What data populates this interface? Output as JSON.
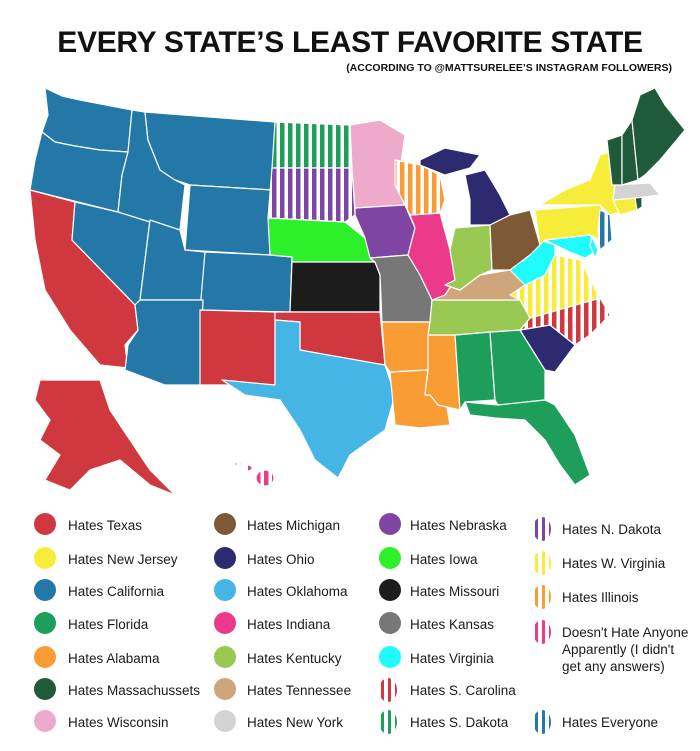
{
  "title": "EVERY STATE’S LEAST FAVORITE STATE",
  "subtitle": "(ACCORDING TO @MATTSURELEE’S INSTAGRAM FOLLOWERS)",
  "legend": [
    {
      "label": "Hates Texas",
      "color": "#d0383f",
      "striped": false
    },
    {
      "label": "Hates New Jersey",
      "color": "#f8ec3a",
      "striped": false
    },
    {
      "label": "Hates California",
      "color": "#2378a8",
      "striped": false
    },
    {
      "label": "Hates Florida",
      "color": "#1d9e5a",
      "striped": false
    },
    {
      "label": "Hates Alabama",
      "color": "#f99c33",
      "striped": false
    },
    {
      "label": "Hates Massachussets",
      "color": "#1f5a3b",
      "striped": false
    },
    {
      "label": "Hates Wisconsin",
      "color": "#eeaacb",
      "striped": false
    },
    {
      "label": "Hates Michigan",
      "color": "#7d5a35",
      "striped": false
    },
    {
      "label": "Hates Ohio",
      "color": "#2d2a70",
      "striped": false
    },
    {
      "label": "Hates Oklahoma",
      "color": "#45b5e6",
      "striped": false
    },
    {
      "label": "Hates Indiana",
      "color": "#ec3a8a",
      "striped": false
    },
    {
      "label": "Hates Kentucky",
      "color": "#99c952",
      "striped": false
    },
    {
      "label": "Hates Tennessee",
      "color": "#cfa57c",
      "striped": false
    },
    {
      "label": "Hates New York",
      "color": "#d3d3d3",
      "striped": false
    },
    {
      "label": "Hates Nebraska",
      "color": "#7e45a2",
      "striped": false
    },
    {
      "label": "Hates Iowa",
      "color": "#2ef02a",
      "striped": false
    },
    {
      "label": "Hates Missouri",
      "color": "#1c1c1c",
      "striped": false
    },
    {
      "label": "Hates Kansas",
      "color": "#777777",
      "striped": false
    },
    {
      "label": "Hates Virginia",
      "color": "#1ffbfd",
      "striped": false
    },
    {
      "label": "Hates S. Carolina",
      "color": "#d0383f",
      "striped": true
    },
    {
      "label": "Hates S. Dakota",
      "color": "#1d9e5a",
      "striped": true
    },
    {
      "label": "Hates N. Dakota",
      "color": "#7e45a2",
      "striped": true
    },
    {
      "label": "Hates W. Virginia",
      "color": "#f8ec3a",
      "striped": true
    },
    {
      "label": "Hates Illinois",
      "color": "#f99c33",
      "striped": true
    },
    {
      "label": "Doesn't Hate Anyone Apparently (I didn't get any answers)",
      "color": "#ec3a8a",
      "striped": true
    },
    {
      "label": "Hates Everyone",
      "color": "#2378a8",
      "striped": true
    }
  ]
}
